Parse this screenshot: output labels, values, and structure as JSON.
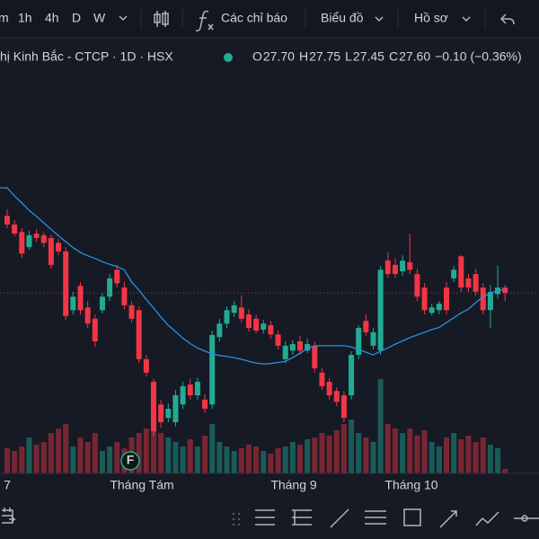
{
  "toolbar": {
    "intervals": [
      "m",
      "1h",
      "4h",
      "D",
      "W"
    ],
    "indicators": "Các chỉ báo",
    "chart_type": "Biểu đồ",
    "profile": "Hồ sơ"
  },
  "header": {
    "symbol": "hị Kinh Bắc - CTCP · 1D · HSX",
    "ohlc": [
      {
        "label": "O",
        "value": "27.70"
      },
      {
        "label": "H",
        "value": "27.75"
      },
      {
        "label": "L",
        "value": "27.45"
      },
      {
        "label": "C",
        "value": "27.60"
      }
    ],
    "change": "−0.10 (−0.36%)"
  },
  "chart": {
    "ylim": [
      24.25,
      32.37
    ],
    "volume_ylim": [
      0,
      200
    ],
    "last_price": 27.6,
    "marker": "F",
    "x_labels": [
      "7",
      "Tháng Tám",
      "Tháng 9",
      "Tháng 10"
    ],
    "up_color": "#22ab94",
    "down_color": "#f23645",
    "ma_color": "#2f8fd8",
    "candles": [
      [
        29.03,
        29.15,
        28.8,
        28.87
      ],
      [
        28.87,
        28.95,
        28.65,
        28.7
      ],
      [
        28.73,
        28.8,
        28.25,
        28.33
      ],
      [
        28.45,
        28.75,
        28.4,
        28.67
      ],
      [
        28.7,
        28.78,
        28.55,
        28.62
      ],
      [
        28.67,
        28.72,
        28.45,
        28.53
      ],
      [
        28.62,
        28.68,
        28.05,
        28.12
      ],
      [
        28.53,
        28.6,
        28.3,
        28.37
      ],
      [
        28.37,
        28.45,
        27.1,
        27.17
      ],
      [
        27.28,
        27.62,
        27.2,
        27.53
      ],
      [
        27.73,
        27.8,
        27.2,
        27.28
      ],
      [
        27.33,
        27.45,
        26.95,
        27.03
      ],
      [
        27.12,
        27.2,
        26.6,
        26.7
      ],
      [
        27.28,
        27.6,
        27.22,
        27.53
      ],
      [
        27.53,
        27.95,
        27.45,
        27.87
      ],
      [
        28.03,
        28.12,
        27.7,
        27.78
      ],
      [
        27.7,
        27.8,
        27.3,
        27.37
      ],
      [
        27.37,
        27.45,
        27.05,
        27.12
      ],
      [
        27.28,
        27.35,
        26.3,
        26.37
      ],
      [
        26.37,
        26.45,
        26.05,
        26.12
      ],
      [
        25.95,
        26.0,
        24.95,
        25.03
      ],
      [
        25.53,
        25.62,
        25.1,
        25.2
      ],
      [
        25.28,
        25.55,
        25.2,
        25.45
      ],
      [
        25.2,
        25.8,
        25.12,
        25.7
      ],
      [
        25.53,
        25.95,
        25.45,
        25.87
      ],
      [
        25.9,
        26.0,
        25.62,
        25.7
      ],
      [
        25.7,
        26.02,
        25.62,
        25.95
      ],
      [
        25.62,
        25.72,
        25.38,
        25.45
      ],
      [
        25.53,
        26.9,
        25.45,
        26.82
      ],
      [
        26.78,
        27.12,
        26.7,
        27.03
      ],
      [
        27.03,
        27.35,
        26.95,
        27.28
      ],
      [
        27.23,
        27.45,
        27.15,
        27.37
      ],
      [
        27.33,
        27.55,
        27.05,
        27.12
      ],
      [
        27.2,
        27.3,
        26.88,
        26.95
      ],
      [
        27.12,
        27.2,
        26.85,
        26.9
      ],
      [
        26.92,
        27.1,
        26.85,
        27.03
      ],
      [
        27.0,
        27.08,
        26.75,
        26.83
      ],
      [
        26.83,
        26.9,
        26.55,
        26.62
      ],
      [
        26.37,
        26.7,
        26.3,
        26.62
      ],
      [
        26.53,
        26.72,
        26.45,
        26.65
      ],
      [
        26.7,
        26.8,
        26.45,
        26.53
      ],
      [
        26.53,
        26.75,
        26.48,
        26.65
      ],
      [
        26.62,
        26.7,
        26.12,
        26.2
      ],
      [
        26.12,
        26.2,
        25.8,
        25.87
      ],
      [
        25.95,
        26.02,
        25.62,
        25.7
      ],
      [
        25.78,
        25.85,
        25.5,
        25.58
      ],
      [
        25.7,
        25.78,
        25.2,
        25.28
      ],
      [
        25.7,
        26.52,
        25.62,
        26.45
      ],
      [
        26.45,
        27.0,
        26.37,
        26.95
      ],
      [
        27.08,
        27.2,
        26.8,
        26.87
      ],
      [
        26.62,
        26.95,
        26.55,
        26.87
      ],
      [
        26.53,
        28.1,
        26.45,
        28.03
      ],
      [
        28.2,
        28.35,
        27.88,
        27.95
      ],
      [
        28.12,
        28.25,
        27.88,
        27.95
      ],
      [
        28.0,
        28.3,
        27.92,
        28.2
      ],
      [
        28.17,
        28.7,
        27.95,
        28.03
      ],
      [
        27.95,
        28.05,
        27.45,
        27.53
      ],
      [
        27.7,
        27.78,
        27.2,
        27.28
      ],
      [
        27.23,
        27.4,
        27.18,
        27.33
      ],
      [
        27.28,
        27.45,
        27.2,
        27.4
      ],
      [
        27.7,
        27.8,
        27.2,
        27.28
      ],
      [
        27.87,
        28.1,
        27.8,
        28.03
      ],
      [
        28.28,
        28.3,
        27.62,
        27.7
      ],
      [
        27.87,
        27.95,
        27.62,
        27.7
      ],
      [
        27.95,
        28.05,
        27.55,
        27.62
      ],
      [
        27.7,
        27.78,
        27.2,
        27.28
      ],
      [
        27.28,
        27.75,
        26.95,
        27.62
      ],
      [
        27.58,
        28.1,
        27.5,
        27.7
      ],
      [
        27.7,
        27.75,
        27.45,
        27.6
      ]
    ],
    "volumes": [
      28,
      25,
      30,
      40,
      32,
      35,
      45,
      50,
      55,
      30,
      40,
      35,
      45,
      25,
      30,
      35,
      28,
      40,
      45,
      50,
      55,
      45,
      40,
      35,
      30,
      38,
      30,
      42,
      55,
      35,
      30,
      25,
      28,
      32,
      30,
      25,
      22,
      28,
      30,
      35,
      32,
      38,
      40,
      45,
      42,
      48,
      55,
      60,
      45,
      40,
      35,
      105,
      55,
      50,
      45,
      50,
      42,
      48,
      35,
      30,
      40,
      45,
      38,
      42,
      35,
      40,
      32,
      28,
      5
    ],
    "ma": [
      29.55,
      29.4,
      29.27,
      29.13,
      29.02,
      28.9,
      28.78,
      28.66,
      28.55,
      28.44,
      28.35,
      28.29,
      28.24,
      28.18,
      28.13,
      28.09,
      28.03,
      27.8,
      27.65,
      27.48,
      27.32,
      27.15,
      27.0,
      26.88,
      26.76,
      26.66,
      26.58,
      26.52,
      26.47,
      26.44,
      26.42,
      26.4,
      26.37,
      26.33,
      26.3,
      26.28,
      26.29,
      26.31,
      26.33,
      26.4,
      26.48,
      26.57,
      26.62,
      26.62,
      26.62,
      26.62,
      26.62,
      26.6,
      26.55,
      26.5,
      26.45,
      26.52,
      26.58,
      26.65,
      26.71,
      26.77,
      26.82,
      26.87,
      26.92,
      26.96,
      27.05,
      27.14,
      27.23,
      27.3,
      27.42,
      27.53,
      27.6,
      27.64,
      27.67
    ]
  }
}
